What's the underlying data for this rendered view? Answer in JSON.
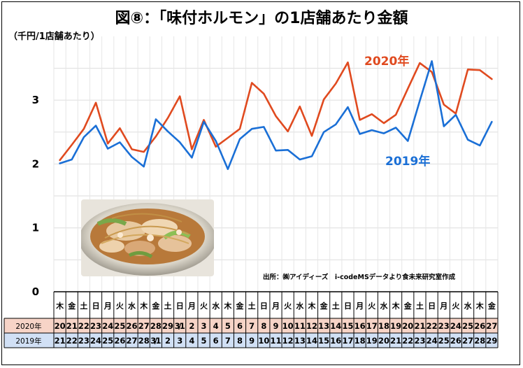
{
  "chart_data": {
    "type": "line",
    "title": "図⑧：「味付ホルモン」の1店舗あたり金額",
    "ylabel": "（千円/1店舗あたり）",
    "ylim": [
      0,
      4
    ],
    "yticks": [
      "0",
      "1",
      "2",
      "3"
    ],
    "grid": true,
    "weekdays": [
      "木",
      "金",
      "土",
      "日",
      "月",
      "火",
      "水",
      "木",
      "金",
      "土",
      "日",
      "月",
      "火",
      "水",
      "木",
      "金",
      "土",
      "日",
      "月",
      "火",
      "水",
      "木",
      "金",
      "土",
      "日",
      "月",
      "火",
      "水",
      "木",
      "金",
      "土",
      "日",
      "月",
      "火",
      "水",
      "木",
      "金"
    ],
    "row_2020_label": "2020年",
    "row_2020": [
      "20",
      "21",
      "22",
      "23",
      "24",
      "25",
      "26",
      "27",
      "28",
      "29",
      "3/1",
      "2",
      "3",
      "4",
      "5",
      "6",
      "7",
      "8",
      "9",
      "10",
      "11",
      "12",
      "13",
      "14",
      "15",
      "16",
      "17",
      "18",
      "19",
      "20",
      "21",
      "22",
      "23",
      "24",
      "25",
      "26",
      "27"
    ],
    "row_2019_label": "2019年",
    "row_2019": [
      "21",
      "22",
      "23",
      "24",
      "25",
      "26",
      "27",
      "28",
      "3/1",
      "2",
      "3",
      "4",
      "5",
      "6",
      "7",
      "8",
      "9",
      "10",
      "11",
      "12",
      "13",
      "14",
      "15",
      "16",
      "17",
      "18",
      "19",
      "20",
      "21",
      "22",
      "23",
      "24",
      "25",
      "26",
      "27",
      "28",
      "29"
    ],
    "series": [
      {
        "name": "2020年",
        "color": "#e04a1f",
        "values": [
          2.06,
          2.3,
          2.55,
          2.96,
          2.32,
          2.56,
          2.23,
          2.19,
          2.43,
          2.72,
          3.06,
          2.23,
          2.69,
          2.27,
          2.41,
          2.55,
          3.27,
          3.1,
          2.75,
          2.51,
          2.9,
          2.44,
          3.01,
          3.26,
          3.59,
          2.69,
          2.78,
          2.64,
          2.77,
          3.18,
          3.58,
          3.44,
          2.93,
          2.79,
          3.48,
          3.47,
          3.33
        ]
      },
      {
        "name": "2019年",
        "color": "#1a6fd6",
        "values": [
          2.01,
          2.07,
          2.42,
          2.6,
          2.24,
          2.34,
          2.11,
          1.96,
          2.7,
          2.51,
          2.34,
          2.1,
          2.66,
          2.36,
          1.92,
          2.39,
          2.55,
          2.58,
          2.21,
          2.22,
          2.07,
          2.12,
          2.5,
          2.62,
          2.89,
          2.47,
          2.53,
          2.48,
          2.57,
          2.36,
          2.99,
          3.61,
          2.59,
          2.77,
          2.38,
          2.29,
          2.66
        ]
      }
    ],
    "source": "出所：㈱アイディーズ　i-codeMSデータより食未来研究室作成"
  },
  "image": {
    "icon": "stir-fried-offal-photo"
  }
}
